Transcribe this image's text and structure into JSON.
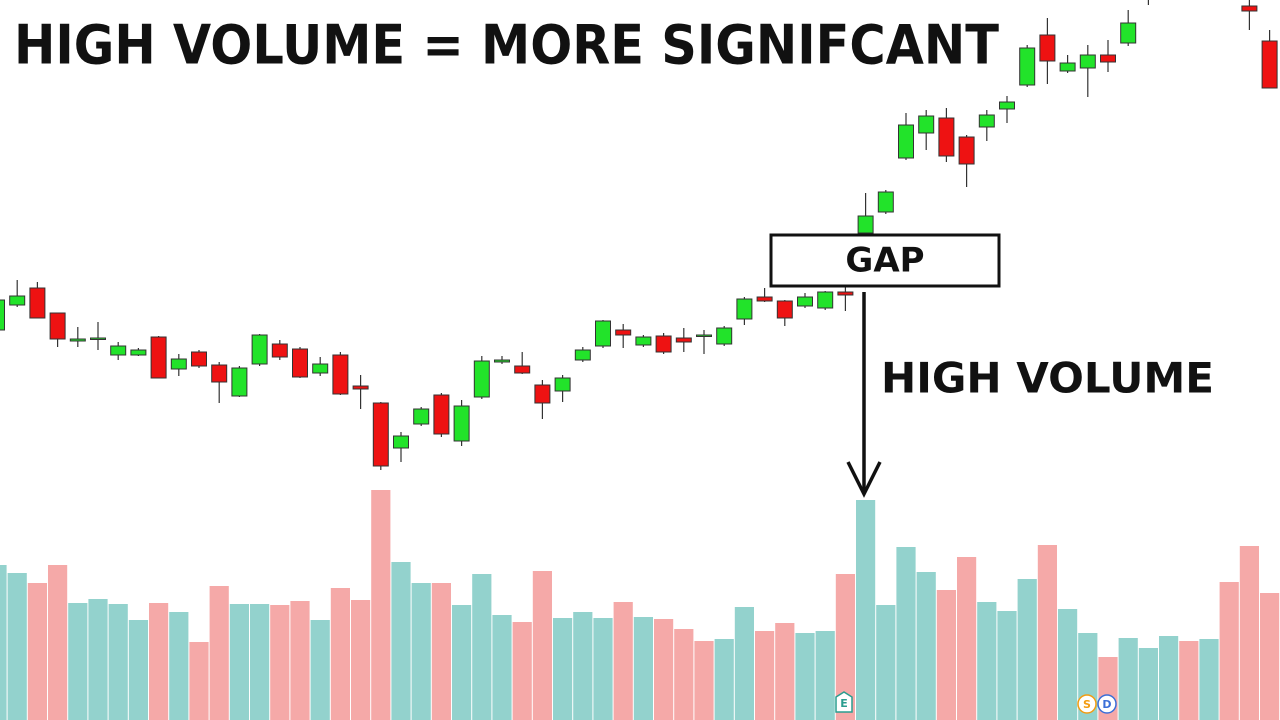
{
  "chart_data": {
    "type": "candlestick",
    "title": "HIGH VOLUME = MORE SIGNIFCANT",
    "annotations": {
      "gap": "GAP",
      "volume": "HIGH VOLUME"
    },
    "markers": [
      "E",
      "S",
      "D"
    ],
    "up_color": "#22e32a",
    "down_color": "#ee1212",
    "ylim": [
      0,
      720
    ],
    "open": [
      390,
      415,
      432,
      407,
      379,
      382,
      365,
      365,
      383,
      351,
      368,
      355,
      324,
      356,
      376,
      371,
      347,
      365,
      334,
      317,
      272,
      296,
      325,
      279,
      323,
      358,
      354,
      335,
      329,
      360,
      374,
      390,
      375,
      384,
      382,
      385,
      376,
      401,
      423,
      419,
      414,
      412,
      428,
      487,
      508,
      562,
      587,
      602,
      583,
      593,
      611,
      635,
      685,
      649,
      652,
      665,
      677,
      730,
      null,
      null,
      null,
      null,
      714,
      679
    ],
    "high": [
      422,
      440,
      438,
      407,
      393,
      398,
      378,
      372,
      384,
      366,
      370,
      358,
      354,
      386,
      380,
      373,
      363,
      368,
      345,
      318,
      288,
      313,
      327,
      320,
      364,
      364,
      368,
      340,
      345,
      373,
      400,
      396,
      385,
      387,
      392,
      390,
      394,
      423,
      432,
      420,
      427,
      429,
      436,
      527,
      530,
      607,
      610,
      612,
      585,
      610,
      624,
      675,
      702,
      665,
      675,
      680,
      710,
      760,
      null,
      null,
      null,
      null,
      720,
      690
    ],
    "low": [
      388,
      413,
      402,
      373,
      373,
      370,
      360,
      364,
      342,
      344,
      352,
      317,
      323,
      354,
      360,
      342,
      344,
      325,
      311,
      250,
      258,
      294,
      283,
      274,
      321,
      356,
      346,
      301,
      318,
      358,
      372,
      372,
      373,
      366,
      368,
      366,
      374,
      395,
      418,
      394,
      412,
      410,
      409,
      485,
      506,
      560,
      570,
      558,
      533,
      579,
      597,
      633,
      636,
      647,
      623,
      648,
      674,
      715,
      null,
      null,
      null,
      null,
      690,
      632
    ],
    "close": [
      420,
      424,
      402,
      381,
      381,
      382,
      374,
      370,
      342,
      361,
      354,
      338,
      352,
      385,
      363,
      343,
      356,
      326,
      331,
      254,
      284,
      311,
      286,
      314,
      359,
      360,
      347,
      317,
      342,
      370,
      399,
      385,
      383,
      368,
      378,
      385,
      392,
      421,
      419,
      402,
      423,
      428,
      425,
      504,
      528,
      595,
      604,
      564,
      556,
      605,
      618,
      672,
      659,
      657,
      665,
      658,
      697,
      750,
      null,
      null,
      null,
      null,
      709,
      632
    ],
    "volume": {
      "ylim": [
        0,
        720
      ],
      "values": [
        155,
        147,
        137,
        155,
        117,
        121,
        116,
        100,
        117,
        108,
        78,
        134,
        116,
        116,
        115,
        119,
        100,
        132,
        120,
        230,
        158,
        137,
        137,
        115,
        146,
        105,
        98,
        149,
        102,
        108,
        102,
        118,
        103,
        101,
        91,
        79,
        81,
        113,
        89,
        97,
        87,
        89,
        146,
        220,
        115,
        173,
        148,
        130,
        163,
        118,
        109,
        141,
        175,
        111,
        87,
        63,
        82,
        72,
        84,
        79,
        81,
        138,
        174,
        127
      ],
      "colors": [
        "#93d2cd",
        "#93d2cd",
        "#f5a9a8",
        "#f5a9a8",
        "#93d2cd",
        "#93d2cd",
        "#93d2cd",
        "#93d2cd",
        "#f5a9a8",
        "#93d2cd",
        "#f5a9a8",
        "#f5a9a8",
        "#93d2cd",
        "#93d2cd",
        "#f5a9a8",
        "#f5a9a8",
        "#93d2cd",
        "#f5a9a8",
        "#f5a9a8",
        "#f5a9a8",
        "#93d2cd",
        "#93d2cd",
        "#f5a9a8",
        "#93d2cd",
        "#93d2cd",
        "#93d2cd",
        "#f5a9a8",
        "#f5a9a8",
        "#93d2cd",
        "#93d2cd",
        "#93d2cd",
        "#f5a9a8",
        "#93d2cd",
        "#f5a9a8",
        "#f5a9a8",
        "#f5a9a8",
        "#93d2cd",
        "#93d2cd",
        "#f5a9a8",
        "#f5a9a8",
        "#93d2cd",
        "#93d2cd",
        "#f5a9a8",
        "#93d2cd",
        "#93d2cd",
        "#93d2cd",
        "#93d2cd",
        "#f5a9a8",
        "#f5a9a8",
        "#93d2cd",
        "#93d2cd",
        "#93d2cd",
        "#f5a9a8",
        "#93d2cd",
        "#93d2cd",
        "#f5a9a8",
        "#93d2cd",
        "#93d2cd",
        "#93d2cd",
        "#f5a9a8",
        "#93d2cd",
        "#f5a9a8",
        "#f5a9a8",
        "#f5a9a8"
      ]
    }
  }
}
